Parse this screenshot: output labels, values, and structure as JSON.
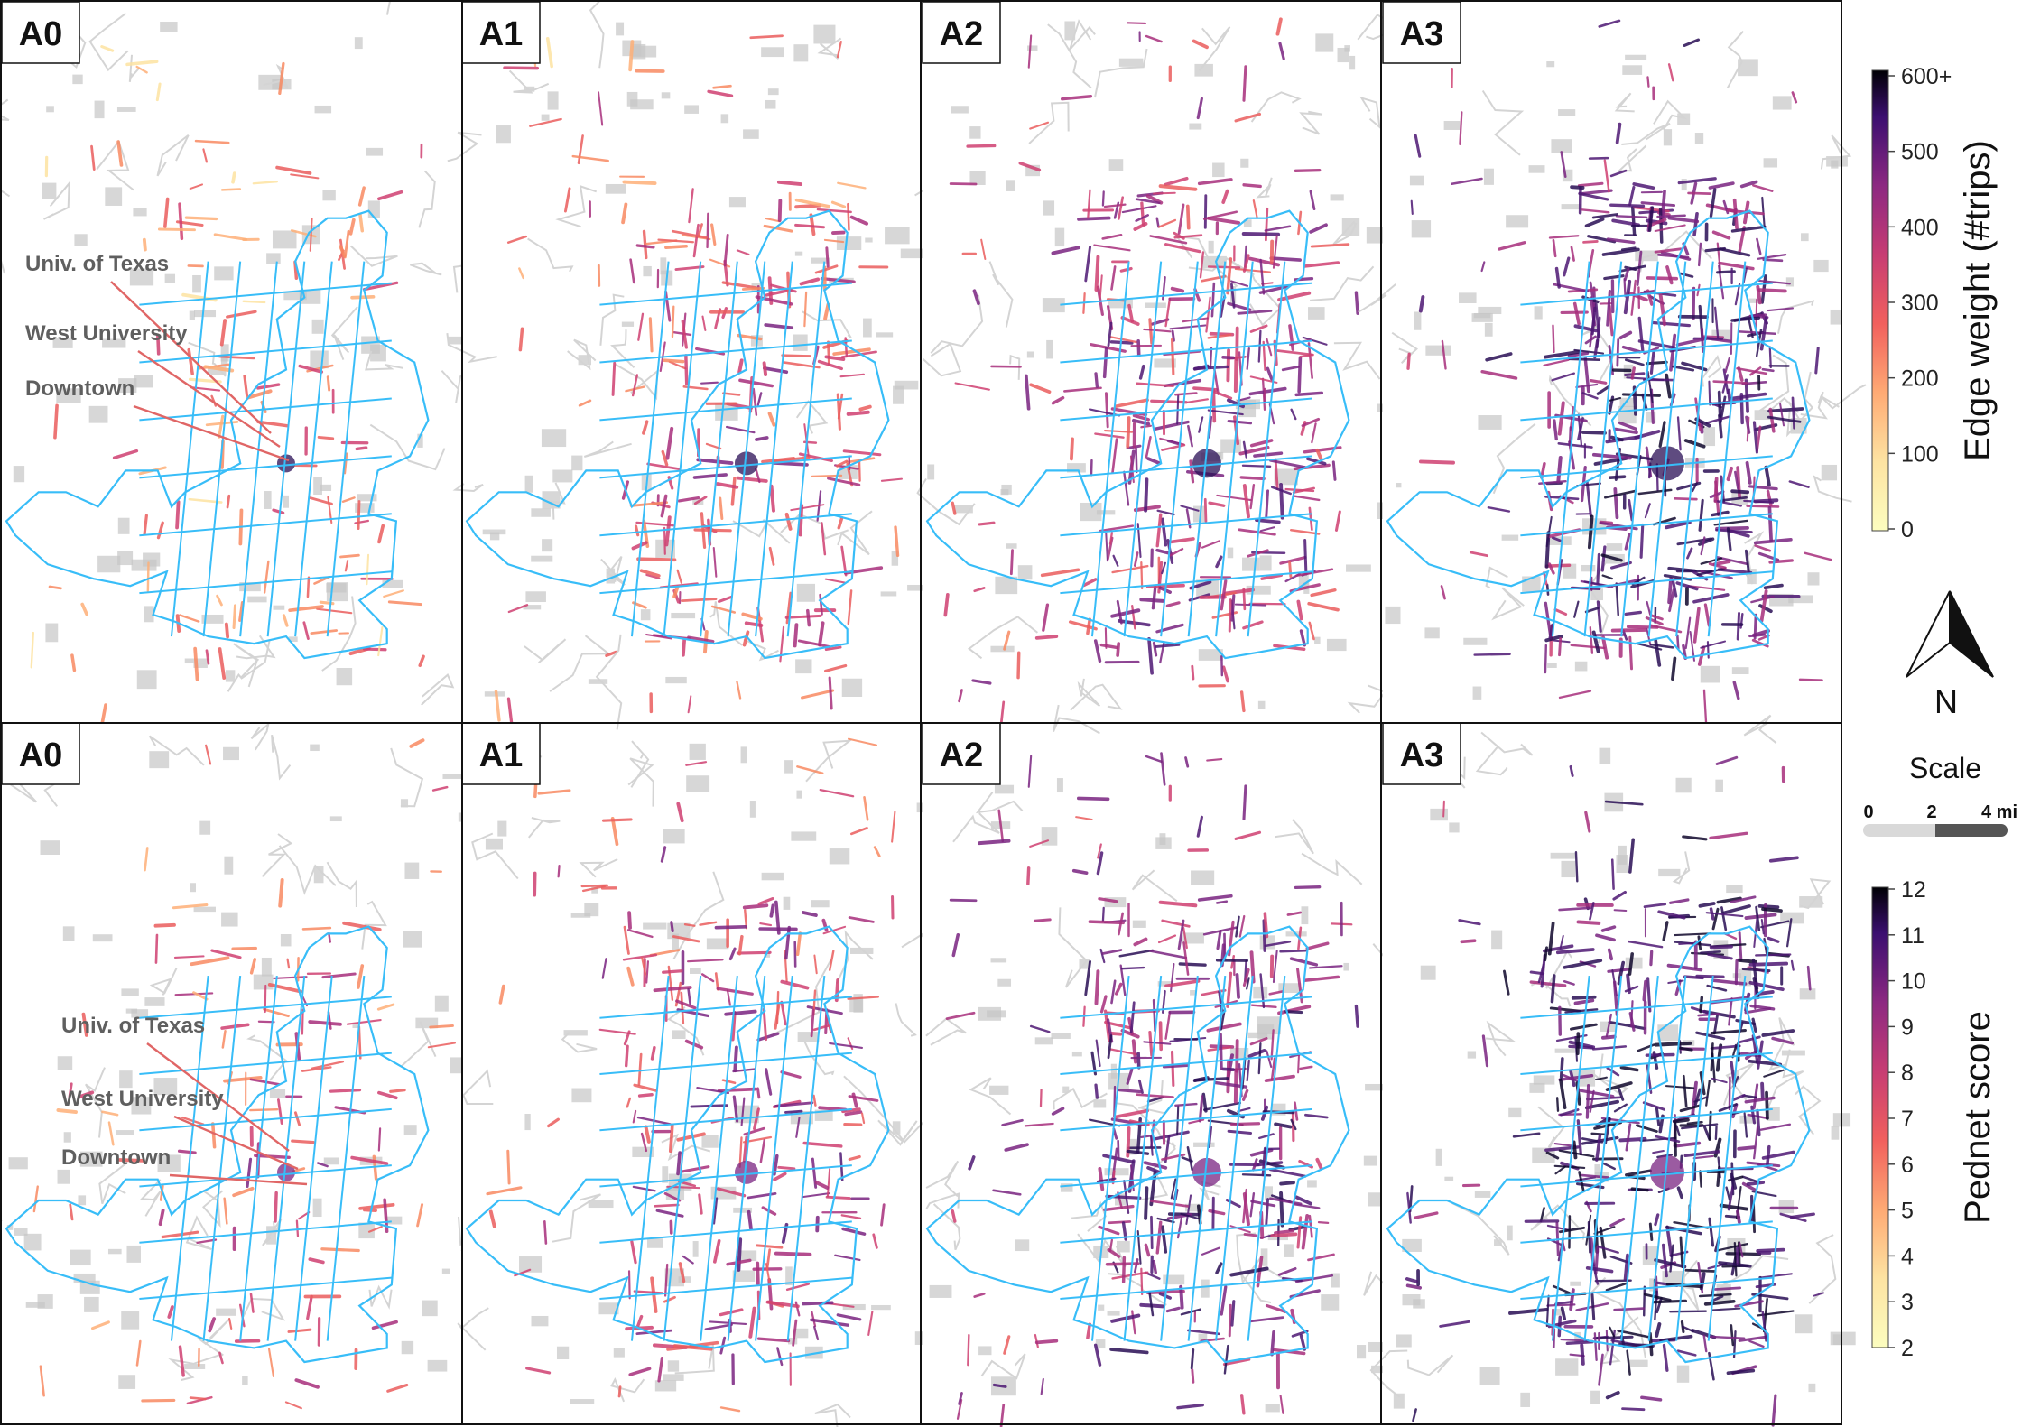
{
  "figure": {
    "rows": [
      {
        "id": "trips",
        "panels": [
          "A0",
          "A1",
          "A2",
          "A3"
        ],
        "annotations": [
          "Univ. of Texas",
          "West University",
          "Downtown"
        ]
      },
      {
        "id": "pednet",
        "panels": [
          "A0",
          "A1",
          "A2",
          "A3"
        ],
        "annotations": [
          "Univ. of Texas",
          "West University",
          "Downtown"
        ]
      }
    ],
    "colorbars": [
      {
        "label": "Edge weight (#trips)",
        "ticks": [
          "0",
          "100",
          "200",
          "300",
          "400",
          "500",
          "600+"
        ],
        "range": [
          0,
          600
        ]
      },
      {
        "label": "Pednet score",
        "ticks": [
          "2",
          "3",
          "4",
          "5",
          "6",
          "7",
          "8",
          "9",
          "10",
          "11",
          "12"
        ],
        "range": [
          2,
          12
        ]
      }
    ],
    "north_arrow": {
      "label": "N"
    },
    "scale_bar": {
      "title": "Scale",
      "ticks": [
        "0",
        "2",
        "4 mi"
      ]
    }
  },
  "colors": {
    "boundary": "#38bdf8",
    "basemap_road": "#d4d4d4",
    "basemap_block": "#c6c6c6",
    "leader_line": "#e06666",
    "annotation_text": "#5f5f5f",
    "frame": "#111111"
  }
}
